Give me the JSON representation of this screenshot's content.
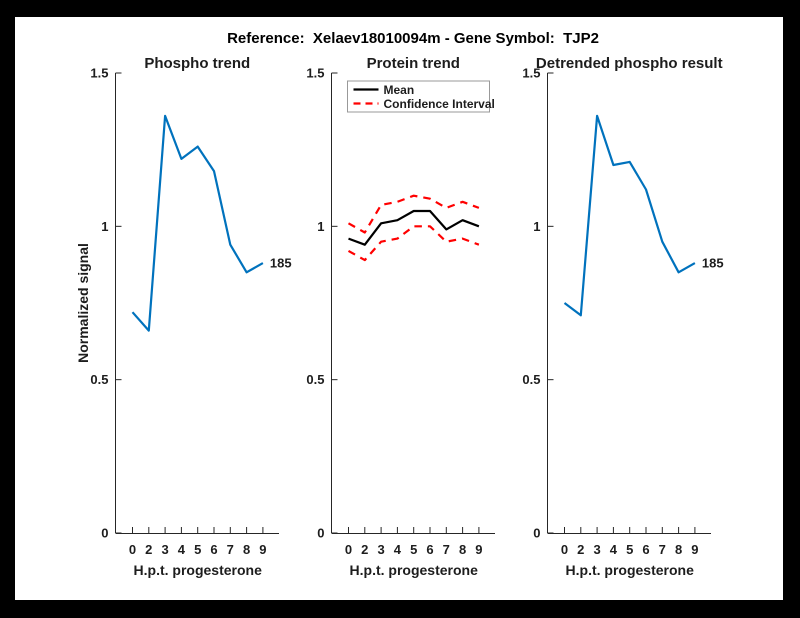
{
  "figure": {
    "title": "Reference:  Xelaev18010094m - Gene Symbol:  TJP2",
    "background": "#000000",
    "panel_background": "#ffffff"
  },
  "axes_shared": {
    "ylabel": "Normalized signal",
    "xlabel": "H.p.t. progesterone",
    "ylim": [
      0,
      1.5
    ],
    "yticks": [
      {
        "value": 0,
        "label": "0"
      },
      {
        "value": 0.5,
        "label": "0.5"
      },
      {
        "value": 1,
        "label": "1"
      },
      {
        "value": 1.5,
        "label": "1.5"
      }
    ],
    "xtick_labels": [
      "0",
      "2",
      "3",
      "4",
      "5",
      "6",
      "7",
      "8",
      "9"
    ],
    "axis_color": "#262626",
    "grid": false
  },
  "chart_data": [
    {
      "type": "line",
      "title": "Phospho trend",
      "xlabel": "H.p.t. progesterone",
      "x_categories": [
        "0",
        "2",
        "3",
        "4",
        "5",
        "6",
        "7",
        "8",
        "9"
      ],
      "ylim": [
        0,
        1.5
      ],
      "series": [
        {
          "name": "Phospho trend",
          "color": "#0072bd",
          "dashed": false,
          "values": [
            0.72,
            0.66,
            1.36,
            1.22,
            1.26,
            1.18,
            0.94,
            0.85,
            0.88
          ]
        }
      ],
      "end_label": "185"
    },
    {
      "type": "line",
      "title": "Protein trend",
      "xlabel": "H.p.t. progesterone",
      "x_categories": [
        "0",
        "2",
        "3",
        "4",
        "5",
        "6",
        "7",
        "8",
        "9"
      ],
      "ylim": [
        0,
        1.5
      ],
      "legend": {
        "position": "top-left",
        "entries": [
          {
            "label": "Mean",
            "color": "#000000",
            "dashed": false
          },
          {
            "label": "Confidence Interval",
            "color": "#ff0000",
            "dashed": true
          }
        ]
      },
      "series": [
        {
          "name": "Mean",
          "color": "#000000",
          "dashed": false,
          "values": [
            0.96,
            0.94,
            1.01,
            1.02,
            1.05,
            1.05,
            0.99,
            1.02,
            1.0
          ]
        },
        {
          "name": "Confidence Interval upper",
          "color": "#ff0000",
          "dashed": true,
          "values": [
            1.01,
            0.98,
            1.07,
            1.08,
            1.1,
            1.09,
            1.06,
            1.08,
            1.06
          ]
        },
        {
          "name": "Confidence Interval lower",
          "color": "#ff0000",
          "dashed": true,
          "values": [
            0.92,
            0.89,
            0.95,
            0.96,
            1.0,
            1.0,
            0.95,
            0.96,
            0.94
          ]
        }
      ]
    },
    {
      "type": "line",
      "title": "Detrended phospho result",
      "xlabel": "H.p.t. progesterone",
      "x_categories": [
        "0",
        "2",
        "3",
        "4",
        "5",
        "6",
        "7",
        "8",
        "9"
      ],
      "ylim": [
        0,
        1.5
      ],
      "series": [
        {
          "name": "Detrended phospho",
          "color": "#0072bd",
          "dashed": false,
          "values": [
            0.75,
            0.71,
            1.36,
            1.2,
            1.21,
            1.12,
            0.95,
            0.85,
            0.88
          ]
        }
      ],
      "end_label": "185"
    }
  ]
}
